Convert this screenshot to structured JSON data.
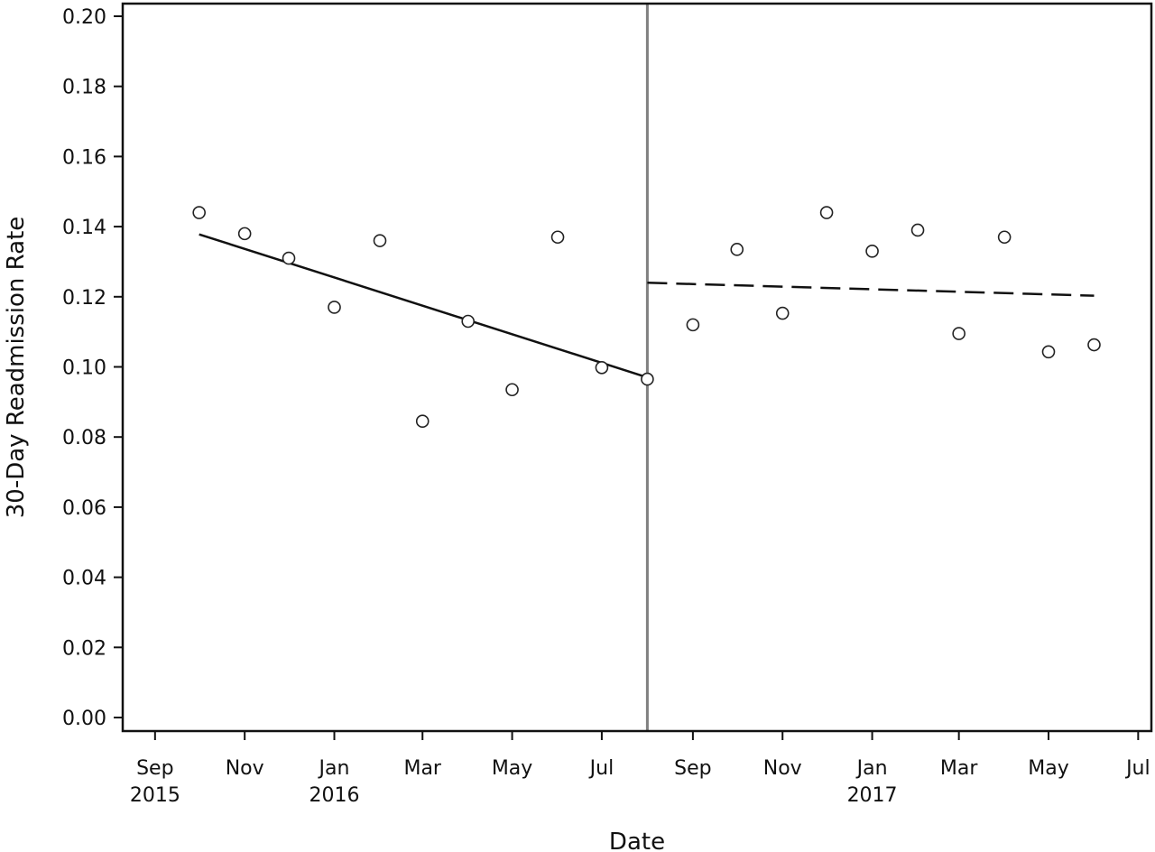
{
  "chart_data": {
    "type": "scatter",
    "title": "",
    "xlabel": "Date",
    "ylabel": "30-Day Readmission Rate",
    "ylim": [
      0.0,
      0.2
    ],
    "y_ticks": [
      "0.00",
      "0.02",
      "0.04",
      "0.06",
      "0.08",
      "0.10",
      "0.12",
      "0.14",
      "0.16",
      "0.18",
      "0.20"
    ],
    "x_ticks": [
      {
        "date": "2015-09-01",
        "month": "Sep",
        "year": "2015"
      },
      {
        "date": "2015-11-01",
        "month": "Nov",
        "year": ""
      },
      {
        "date": "2016-01-01",
        "month": "Jan",
        "year": "2016"
      },
      {
        "date": "2016-03-01",
        "month": "Mar",
        "year": ""
      },
      {
        "date": "2016-05-01",
        "month": "May",
        "year": ""
      },
      {
        "date": "2016-07-01",
        "month": "Jul",
        "year": ""
      },
      {
        "date": "2016-09-01",
        "month": "Sep",
        "year": ""
      },
      {
        "date": "2016-11-01",
        "month": "Nov",
        "year": ""
      },
      {
        "date": "2017-01-01",
        "month": "Jan",
        "year": "2017"
      },
      {
        "date": "2017-03-01",
        "month": "Mar",
        "year": ""
      },
      {
        "date": "2017-05-01",
        "month": "May",
        "year": ""
      },
      {
        "date": "2017-07-01",
        "month": "Jul",
        "year": ""
      }
    ],
    "x_range": [
      "2015-08-10",
      "2017-07-10"
    ],
    "grid": false,
    "points": [
      {
        "x": "2015-10-01",
        "y": 0.144
      },
      {
        "x": "2015-11-01",
        "y": 0.138
      },
      {
        "x": "2015-12-01",
        "y": 0.131
      },
      {
        "x": "2016-01-01",
        "y": 0.117
      },
      {
        "x": "2016-02-01",
        "y": 0.136
      },
      {
        "x": "2016-03-01",
        "y": 0.0845
      },
      {
        "x": "2016-04-01",
        "y": 0.113
      },
      {
        "x": "2016-05-01",
        "y": 0.0935
      },
      {
        "x": "2016-06-01",
        "y": 0.137
      },
      {
        "x": "2016-07-01",
        "y": 0.0998
      },
      {
        "x": "2016-08-01",
        "y": 0.0965
      },
      {
        "x": "2016-09-01",
        "y": 0.112
      },
      {
        "x": "2016-10-01",
        "y": 0.1335
      },
      {
        "x": "2016-11-01",
        "y": 0.1153
      },
      {
        "x": "2016-12-01",
        "y": 0.144
      },
      {
        "x": "2017-01-01",
        "y": 0.133
      },
      {
        "x": "2017-02-01",
        "y": 0.139
      },
      {
        "x": "2017-03-01",
        "y": 0.1095
      },
      {
        "x": "2017-04-01",
        "y": 0.137
      },
      {
        "x": "2017-05-01",
        "y": 0.1043
      },
      {
        "x": "2017-06-01",
        "y": 0.1063
      }
    ],
    "trend_lines": [
      {
        "style": "solid",
        "x": [
          "2015-10-01",
          "2016-08-01"
        ],
        "y": [
          0.1378,
          0.097
        ]
      },
      {
        "style": "dashed",
        "x": [
          "2016-08-01",
          "2017-06-01"
        ],
        "y": [
          0.124,
          0.1203
        ]
      }
    ],
    "reference_line": {
      "x": "2016-08-01",
      "color": "#808080"
    },
    "colors": {
      "axis": "#111111",
      "marker_stroke": "#222222",
      "trend": "#111111",
      "reference": "#808080"
    }
  }
}
